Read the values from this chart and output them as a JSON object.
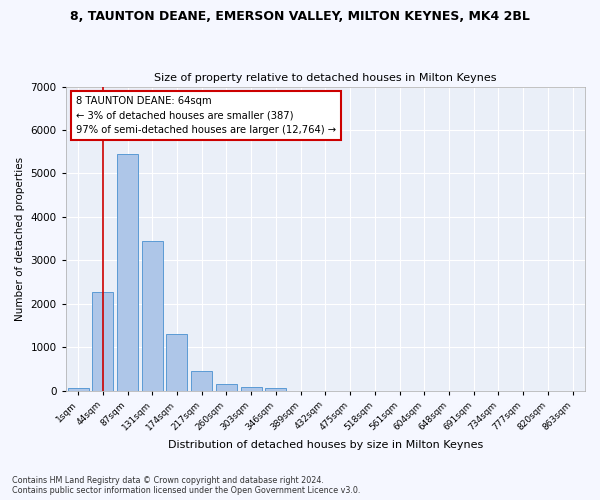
{
  "title": "8, TAUNTON DEANE, EMERSON VALLEY, MILTON KEYNES, MK4 2BL",
  "subtitle": "Size of property relative to detached houses in Milton Keynes",
  "xlabel": "Distribution of detached houses by size in Milton Keynes",
  "ylabel": "Number of detached properties",
  "footer_line1": "Contains HM Land Registry data © Crown copyright and database right 2024.",
  "footer_line2": "Contains public sector information licensed under the Open Government Licence v3.0.",
  "bar_labels": [
    "1sqm",
    "44sqm",
    "87sqm",
    "131sqm",
    "174sqm",
    "217sqm",
    "260sqm",
    "303sqm",
    "346sqm",
    "389sqm",
    "432sqm",
    "475sqm",
    "518sqm",
    "561sqm",
    "604sqm",
    "648sqm",
    "691sqm",
    "734sqm",
    "777sqm",
    "820sqm",
    "863sqm"
  ],
  "bar_values": [
    70,
    2280,
    5450,
    3450,
    1310,
    460,
    155,
    85,
    50,
    0,
    0,
    0,
    0,
    0,
    0,
    0,
    0,
    0,
    0,
    0,
    0
  ],
  "bar_color": "#aec6e8",
  "bar_edge_color": "#5b9bd5",
  "annotation_box_text": "8 TAUNTON DEANE: 64sqm\n← 3% of detached houses are smaller (387)\n97% of semi-detached houses are larger (12,764) →",
  "vline_x": 1,
  "vline_color": "#cc0000",
  "annotation_box_color": "#ffffff",
  "annotation_box_edgecolor": "#cc0000",
  "ylim": [
    0,
    7000
  ],
  "yticks": [
    0,
    1000,
    2000,
    3000,
    4000,
    5000,
    6000,
    7000
  ],
  "background_color": "#f5f7ff",
  "axes_background": "#eaeff8"
}
